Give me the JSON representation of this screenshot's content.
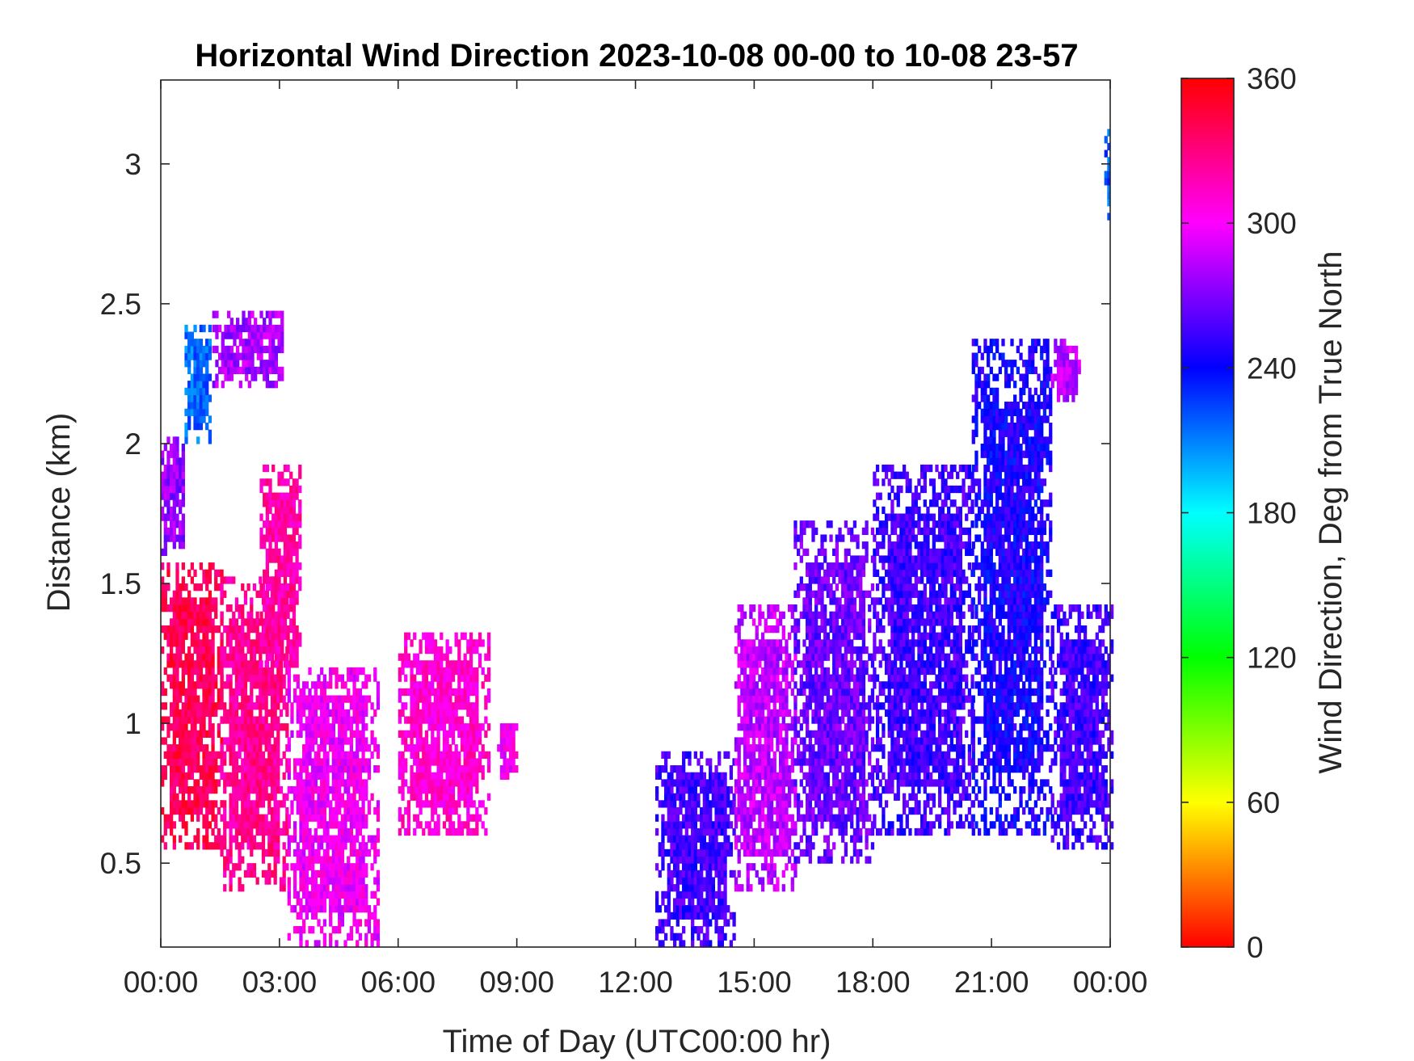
{
  "chart_data": {
    "type": "heatmap",
    "title": "Horizontal Wind Direction 2023-10-08 00-00 to 10-08 23-57",
    "xlabel": "Time of Day (UTC00:00 hr)",
    "ylabel": "Distance (km)",
    "xlim": [
      0,
      24
    ],
    "ylim": [
      0.2,
      3.3
    ],
    "x_ticks": [
      0,
      3,
      6,
      9,
      12,
      15,
      18,
      21,
      24
    ],
    "x_tick_labels": [
      "00:00",
      "03:00",
      "06:00",
      "09:00",
      "12:00",
      "15:00",
      "18:00",
      "21:00",
      "00:00"
    ],
    "y_ticks": [
      0.5,
      1,
      1.5,
      2,
      2.5,
      3
    ],
    "y_tick_labels": [
      "0.5",
      "1",
      "1.5",
      "2",
      "2.5",
      "3"
    ],
    "grid": false,
    "colorbar": {
      "label": "Wind Direction, Deg from True North",
      "range": [
        0,
        360
      ],
      "ticks": [
        0,
        60,
        120,
        180,
        240,
        300,
        360
      ],
      "tick_labels": [
        "0",
        "60",
        "120",
        "180",
        "240",
        "300",
        "360"
      ],
      "colormap": "hsv-reversed",
      "colors": [
        "#ff0000",
        "#ff8000",
        "#ffff00",
        "#00ff00",
        "#00ffff",
        "#0000ff",
        "#ff00ff",
        "#ff0000"
      ]
    },
    "regions": [
      {
        "x_range": [
          0.0,
          1.5
        ],
        "y_range": [
          0.55,
          1.55
        ],
        "direction": 340
      },
      {
        "x_range": [
          1.5,
          3.2
        ],
        "y_range": [
          0.4,
          1.5
        ],
        "direction": 325
      },
      {
        "x_range": [
          2.5,
          3.5
        ],
        "y_range": [
          1.2,
          1.9
        ],
        "direction": 320
      },
      {
        "x_range": [
          3.2,
          5.5
        ],
        "y_range": [
          0.2,
          1.2
        ],
        "direction": 300
      },
      {
        "x_range": [
          6.0,
          8.3
        ],
        "y_range": [
          0.6,
          1.3
        ],
        "direction": 310
      },
      {
        "x_range": [
          8.5,
          9.0
        ],
        "y_range": [
          0.8,
          1.0
        ],
        "direction": 300
      },
      {
        "x_range": [
          0.0,
          0.6
        ],
        "y_range": [
          1.6,
          2.0
        ],
        "direction": 275
      },
      {
        "x_range": [
          0.6,
          1.2
        ],
        "y_range": [
          2.0,
          2.4
        ],
        "direction": 215
      },
      {
        "x_range": [
          1.3,
          3.1
        ],
        "y_range": [
          2.2,
          2.45
        ],
        "direction": 280
      },
      {
        "x_range": [
          12.5,
          14.5
        ],
        "y_range": [
          0.2,
          0.9
        ],
        "direction": 255
      },
      {
        "x_range": [
          14.5,
          16.0
        ],
        "y_range": [
          0.4,
          1.4
        ],
        "direction": 285
      },
      {
        "x_range": [
          16.0,
          18.0
        ],
        "y_range": [
          0.5,
          1.7
        ],
        "direction": 265
      },
      {
        "x_range": [
          18.0,
          20.5
        ],
        "y_range": [
          0.6,
          1.9
        ],
        "direction": 255
      },
      {
        "x_range": [
          20.5,
          22.5
        ],
        "y_range": [
          0.6,
          2.35
        ],
        "direction": 245
      },
      {
        "x_range": [
          22.5,
          24.0
        ],
        "y_range": [
          0.55,
          1.4
        ],
        "direction": 255
      },
      {
        "x_range": [
          22.5,
          23.2
        ],
        "y_range": [
          2.15,
          2.35
        ],
        "direction": 285
      },
      {
        "x_range": [
          23.85,
          24.0
        ],
        "y_range": [
          2.8,
          3.1
        ],
        "direction": 220
      }
    ]
  }
}
